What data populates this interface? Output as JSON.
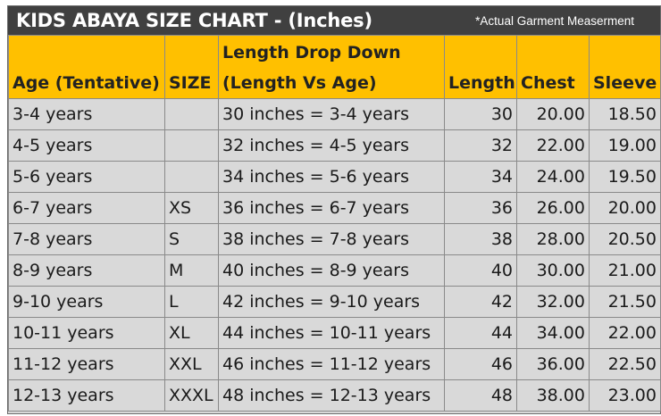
{
  "title": "KIDS ABAYA SIZE CHART - (Inches)",
  "note": "*Actual Garment Measerment",
  "colors": {
    "banner": "#404040",
    "header": "#ffc000",
    "row": "#d9d9d9"
  },
  "headers": {
    "age": "Age (Tentative)",
    "size": "SIZE",
    "drop_line1": "Length Drop Down",
    "drop_line2": "(Length Vs Age)",
    "length": "Length",
    "chest": "Chest",
    "sleeve": "Sleeve"
  },
  "rows": [
    {
      "age": "3-4 years",
      "size": "",
      "drop": "30 inches = 3-4 years",
      "length": "30",
      "chest": "20.00",
      "sleeve": "18.50"
    },
    {
      "age": "4-5 years",
      "size": "",
      "drop": "32 inches = 4-5 years",
      "length": "32",
      "chest": "22.00",
      "sleeve": "19.00"
    },
    {
      "age": "5-6 years",
      "size": "",
      "drop": "34 inches = 5-6 years",
      "length": "34",
      "chest": "24.00",
      "sleeve": "19.50"
    },
    {
      "age": "6-7 years",
      "size": "XS",
      "drop": "36 inches = 6-7 years",
      "length": "36",
      "chest": "26.00",
      "sleeve": "20.00"
    },
    {
      "age": "7-8 years",
      "size": "S",
      "drop": "38 inches = 7-8 years",
      "length": "38",
      "chest": "28.00",
      "sleeve": "20.50"
    },
    {
      "age": "8-9 years",
      "size": "M",
      "drop": "40 inches = 8-9 years",
      "length": "40",
      "chest": "30.00",
      "sleeve": "21.00"
    },
    {
      "age": "9-10 years",
      "size": "L",
      "drop": "42 inches = 9-10 years",
      "length": "42",
      "chest": "32.00",
      "sleeve": "21.50"
    },
    {
      "age": "10-11 years",
      "size": "XL",
      "drop": "44 inches = 10-11 years",
      "length": "44",
      "chest": "34.00",
      "sleeve": "22.00"
    },
    {
      "age": "11-12 years",
      "size": "XXL",
      "drop": "46 inches = 11-12 years",
      "length": "46",
      "chest": "36.00",
      "sleeve": "22.50"
    },
    {
      "age": "12-13 years",
      "size": "XXXL",
      "drop": "48 inches = 12-13 years",
      "length": "48",
      "chest": "38.00",
      "sleeve": "23.00"
    }
  ]
}
